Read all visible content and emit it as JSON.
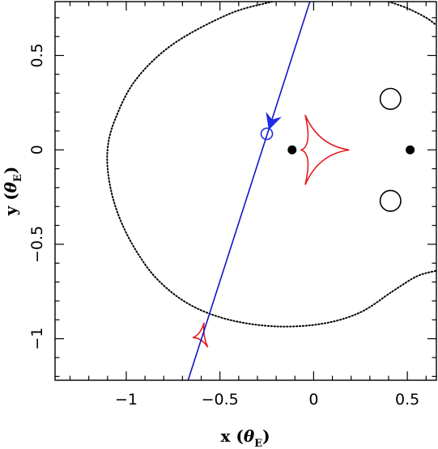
{
  "chart_data": {
    "type": "scatter",
    "xlabel": {
      "main": "x (",
      "symbol": "θ",
      "sub": "E",
      "close": ")"
    },
    "ylabel": {
      "main": "y (",
      "symbol": "θ",
      "sub": "E",
      "close": ")"
    },
    "xlim": [
      -1.38,
      0.655
    ],
    "ylim": [
      -1.22,
      0.785
    ],
    "x_ticks": [
      -1,
      -0.5,
      0,
      0.5
    ],
    "x_tick_labels": [
      "−1",
      "−0.5",
      "0",
      "0.5"
    ],
    "y_ticks": [
      0.5,
      0,
      -0.5,
      -1
    ],
    "y_tick_labels": [
      "0.5",
      "0",
      "−0.5",
      "−1"
    ],
    "x_minor_step": 0.1,
    "y_minor_step": 0.1,
    "grid": false,
    "colors": {
      "critical_curve": "#000000",
      "caustic": "#e31a1c",
      "trajectory": "#1414c8",
      "source": "#1f2ee6",
      "lens": "#000000",
      "images": "#000000"
    },
    "lens_masses": [
      {
        "x": -0.115,
        "y": 0.0
      },
      {
        "x": 0.515,
        "y": 0.0
      }
    ],
    "image_positions": [
      {
        "x": 0.41,
        "y": 0.27,
        "rx": 0.055,
        "ry": 0.055
      },
      {
        "x": 0.41,
        "y": -0.27,
        "rx": 0.055,
        "ry": 0.055
      }
    ],
    "source_position": {
      "x": -0.25,
      "y": 0.085
    },
    "source_trajectory": {
      "points": [
        {
          "x": -0.67,
          "y": -1.22
        },
        {
          "x": -0.02,
          "y": 0.785
        }
      ],
      "arrow_at": {
        "x": -0.225,
        "y": 0.15
      }
    },
    "caustics": [
      {
        "name": "central",
        "cusps": [
          {
            "x": 0.19,
            "y": 0.0
          },
          {
            "x": -0.045,
            "y": 0.185
          },
          {
            "x": -0.065,
            "y": 0.0
          },
          {
            "x": -0.045,
            "y": -0.185
          }
        ]
      },
      {
        "name": "planetary",
        "cusps": [
          {
            "x": -0.585,
            "y": -0.915
          },
          {
            "x": -0.645,
            "y": -0.995
          },
          {
            "x": -0.565,
            "y": -1.045
          }
        ]
      }
    ],
    "critical_curve_outer": [
      {
        "x": -0.22,
        "y": 0.785
      },
      {
        "x": -0.45,
        "y": 0.72
      },
      {
        "x": -0.75,
        "y": 0.56
      },
      {
        "x": -0.95,
        "y": 0.37
      },
      {
        "x": -1.06,
        "y": 0.16
      },
      {
        "x": -1.1,
        "y": 0.0
      },
      {
        "x": -1.09,
        "y": -0.17
      },
      {
        "x": -1.04,
        "y": -0.35
      },
      {
        "x": -0.95,
        "y": -0.53
      },
      {
        "x": -0.83,
        "y": -0.69
      },
      {
        "x": -0.66,
        "y": -0.82
      },
      {
        "x": -0.45,
        "y": -0.9
      },
      {
        "x": -0.2,
        "y": -0.935
      },
      {
        "x": 0.05,
        "y": -0.92
      },
      {
        "x": 0.25,
        "y": -0.86
      },
      {
        "x": 0.42,
        "y": -0.75
      },
      {
        "x": 0.55,
        "y": -0.67
      },
      {
        "x": 0.655,
        "y": -0.64
      }
    ],
    "critical_curve_corner": [
      {
        "x": 0.4,
        "y": 0.785
      },
      {
        "x": 0.5,
        "y": 0.75
      },
      {
        "x": 0.6,
        "y": 0.7
      },
      {
        "x": 0.655,
        "y": 0.66
      }
    ]
  }
}
